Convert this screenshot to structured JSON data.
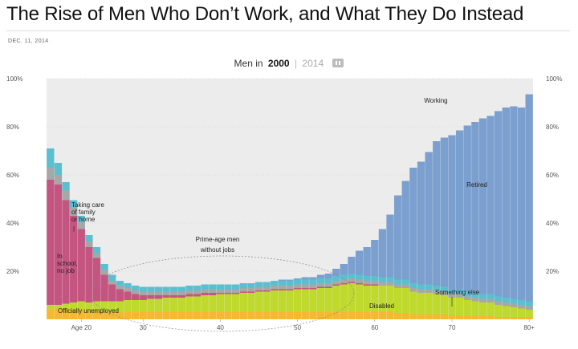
{
  "headline": "The Rise of Men Who Don’t Work, and What They Do Instead",
  "dateline": "DEC. 11, 2014",
  "toggle": {
    "prefix": "Men in",
    "active_year": "2000",
    "separator": "|",
    "inactive_year": "2014",
    "pause_icon": "pause-icon"
  },
  "chart_data": {
    "type": "bar",
    "stacked": true,
    "x": [
      18,
      19,
      20,
      21,
      22,
      23,
      24,
      25,
      26,
      27,
      28,
      29,
      30,
      31,
      32,
      33,
      34,
      35,
      36,
      37,
      38,
      39,
      40,
      41,
      42,
      43,
      44,
      45,
      46,
      47,
      48,
      49,
      50,
      51,
      52,
      53,
      54,
      55,
      56,
      57,
      58,
      59,
      60,
      61,
      62,
      63,
      64,
      65,
      66,
      67,
      68,
      69,
      70,
      71,
      72,
      73,
      74,
      75,
      76,
      77,
      78,
      79,
      80
    ],
    "x_tick_labels": [
      {
        "x": 22,
        "label": "Age 20"
      },
      {
        "x": 30,
        "label": "30"
      },
      {
        "x": 40,
        "label": "40"
      },
      {
        "x": 50,
        "label": "50"
      },
      {
        "x": 60,
        "label": "60"
      },
      {
        "x": 70,
        "label": "70"
      },
      {
        "x": 80,
        "label": "80+"
      }
    ],
    "y_tick_labels": [
      "20%",
      "40%",
      "60%",
      "80%",
      "100%"
    ],
    "y_ticks": [
      20,
      40,
      60,
      80,
      100
    ],
    "ylim": [
      0,
      100
    ],
    "grid": true,
    "series": [
      {
        "name": "Officially unemployed",
        "color": "#f6b82c",
        "values": [
          4,
          4,
          4,
          4,
          4,
          3.5,
          3.5,
          3,
          3,
          3,
          3,
          3,
          3,
          3,
          3,
          3,
          3,
          3,
          3,
          3,
          3,
          3,
          3,
          3,
          3,
          3,
          3,
          3,
          3,
          3,
          3,
          3,
          3,
          3,
          3,
          3,
          3,
          3,
          3,
          3,
          3,
          3,
          3,
          3,
          3,
          2.5,
          2.5,
          2,
          2,
          2,
          2,
          2,
          1.5,
          1.5,
          1.5,
          1.5,
          1.5,
          1.5,
          1,
          1,
          1,
          1,
          1
        ]
      },
      {
        "name": "Disabled",
        "color": "#bfd92d",
        "values": [
          2,
          2,
          2.5,
          3,
          3.5,
          3.5,
          4,
          4.5,
          4.5,
          4.5,
          5,
          5,
          5,
          5.5,
          5.5,
          6,
          6,
          6,
          6.5,
          6.5,
          7,
          7,
          7.5,
          7.5,
          7.5,
          8,
          8,
          8.5,
          8.5,
          9,
          9,
          9,
          9.5,
          9.5,
          9.5,
          10,
          10,
          11,
          11.5,
          12,
          11.5,
          11,
          11,
          11,
          11,
          10.5,
          10.5,
          9.5,
          9,
          9,
          8.5,
          8,
          7.5,
          7.5,
          6.5,
          6,
          5.5,
          5.5,
          5,
          4.5,
          4,
          3.5,
          3
        ]
      },
      {
        "name": "In school, no job",
        "color": "#c45581",
        "values": [
          52,
          50,
          43,
          36,
          30,
          23,
          18,
          11,
          7,
          5,
          3.5,
          2.5,
          2,
          1.5,
          1.5,
          1,
          1,
          1,
          1,
          1,
          1,
          1,
          0.5,
          0.5,
          0.5,
          0.5,
          0.5,
          0.5,
          0.5,
          0.5,
          0.5,
          0.5,
          0.5,
          0.5,
          0.5,
          0.5,
          0.5,
          0.5,
          0.5,
          0.5,
          0.5,
          0.5,
          0.5,
          0,
          0,
          0,
          0,
          0,
          0,
          0,
          0,
          0,
          0,
          0,
          0,
          0,
          0,
          0,
          0,
          0,
          0,
          0,
          0
        ]
      },
      {
        "name": "Taking care of family or home",
        "color": "#a6a8a8",
        "values": [
          5,
          4,
          4,
          3.5,
          3,
          2.5,
          2,
          2,
          1.5,
          1.5,
          1.5,
          1.5,
          1.5,
          1.5,
          1.5,
          1.5,
          1.5,
          1.5,
          1.5,
          1.5,
          1.5,
          1.5,
          1.5,
          1.5,
          1.5,
          1.5,
          1.5,
          1.5,
          1.5,
          1.5,
          1.5,
          1.5,
          1.5,
          1.5,
          1.5,
          1.5,
          1.5,
          1.5,
          1.5,
          1.5,
          1.5,
          1.5,
          1.5,
          1.5,
          1.5,
          1.5,
          1.5,
          1.5,
          1.5,
          1.5,
          1.5,
          1.5,
          1.5,
          1.5,
          1.5,
          1.5,
          1.5,
          1.5,
          1.5,
          1.5,
          1.5,
          1.5,
          1.5
        ]
      },
      {
        "name": "Something else",
        "color": "#5cbfd0",
        "values": [
          8,
          5,
          3.5,
          3,
          2.5,
          2.5,
          2.5,
          2.5,
          2.5,
          2,
          2,
          2,
          2,
          2,
          2,
          2,
          2,
          2,
          2,
          2,
          2,
          2,
          2,
          2,
          2,
          2,
          2,
          2,
          2,
          2,
          2,
          2,
          2,
          2,
          2,
          2,
          2,
          2,
          2,
          2,
          2,
          2,
          2,
          2,
          2,
          2,
          2,
          2,
          2,
          2,
          2,
          2,
          2,
          2,
          2,
          2,
          2,
          2,
          2,
          2,
          2,
          2,
          2
        ]
      },
      {
        "name": "Retired",
        "color": "#7b9fcf",
        "values": [
          0,
          0,
          0,
          0,
          0,
          0,
          0,
          0,
          0,
          0,
          0,
          0,
          0,
          0,
          0,
          0,
          0,
          0,
          0,
          0,
          0,
          0,
          0,
          0,
          0,
          0,
          0,
          0,
          0,
          0,
          0.5,
          0.5,
          0.5,
          1,
          1,
          1.5,
          2,
          3,
          4.5,
          7,
          10,
          12,
          15,
          20,
          26,
          35,
          41,
          48,
          51,
          55,
          60,
          62,
          64,
          66,
          69,
          71,
          73,
          74,
          77,
          79,
          80,
          80,
          86
        ]
      }
    ],
    "background_series": {
      "name": "Working",
      "color": "#ececec"
    },
    "annotations": {
      "working": "Working",
      "retired": "Retired",
      "caretaking": "Taking care of family or home",
      "school": "In school, no job",
      "unemployed": "Officially unemployed",
      "disabled": "Disabled",
      "something_else": "Something else",
      "prime_age": "Prime-age men without jobs"
    },
    "prime_age_range": [
      25,
      54
    ]
  }
}
